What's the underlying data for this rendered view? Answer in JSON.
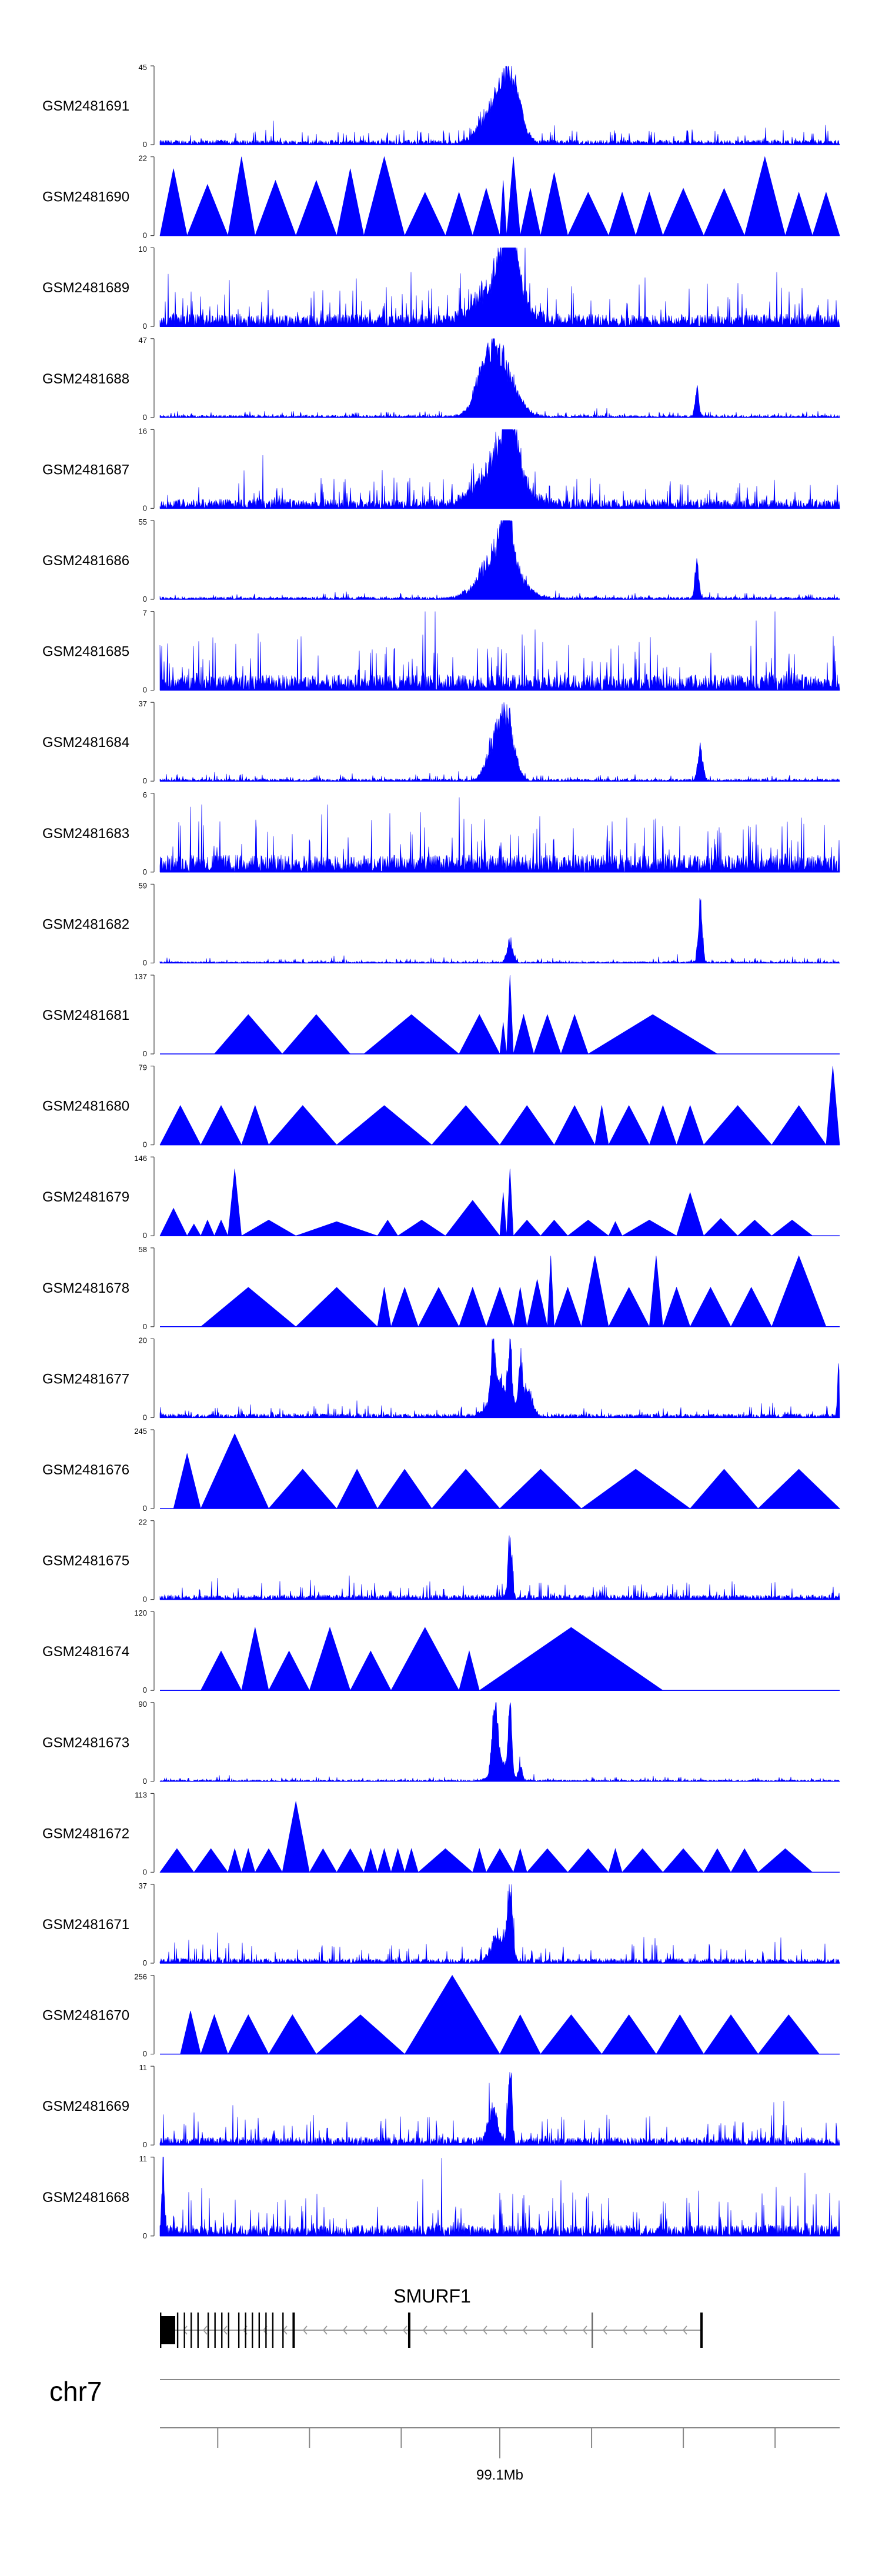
{
  "chart_data": {
    "type": "area",
    "title": "",
    "track_color": "#0000ff",
    "baseline_value": "0",
    "tracks": [
      {
        "name": "GSM2481691",
        "ymax": "45",
        "pattern": "noise",
        "density": 1.0,
        "base": 0.06,
        "spread": 0.16,
        "peaks": [
          [
            0.515,
            1.0,
            0.02
          ],
          [
            0.49,
            0.5,
            0.025
          ]
        ]
      },
      {
        "name": "GSM2481690",
        "ymax": "22",
        "pattern": "tri",
        "tris": [
          [
            0,
            0.04,
            0.85
          ],
          [
            0.04,
            0.1,
            0.65
          ],
          [
            0.1,
            0.14,
            1.0
          ],
          [
            0.14,
            0.2,
            0.7
          ],
          [
            0.2,
            0.26,
            0.7
          ],
          [
            0.26,
            0.3,
            0.85
          ],
          [
            0.3,
            0.36,
            1.0
          ],
          [
            0.36,
            0.42,
            0.55
          ],
          [
            0.42,
            0.46,
            0.55
          ],
          [
            0.46,
            0.5,
            0.6
          ],
          [
            0.5,
            0.51,
            0.7
          ],
          [
            0.51,
            0.53,
            1.0
          ],
          [
            0.53,
            0.56,
            0.6
          ],
          [
            0.56,
            0.6,
            0.8
          ],
          [
            0.6,
            0.66,
            0.55
          ],
          [
            0.66,
            0.7,
            0.55
          ],
          [
            0.7,
            0.74,
            0.55
          ],
          [
            0.74,
            0.8,
            0.6
          ],
          [
            0.8,
            0.86,
            0.6
          ],
          [
            0.86,
            0.92,
            1.0
          ],
          [
            0.92,
            0.96,
            0.55
          ],
          [
            0.96,
            1.0,
            0.55
          ]
        ]
      },
      {
        "name": "GSM2481689",
        "ymax": "10",
        "pattern": "noise",
        "density": 1.0,
        "base": 0.16,
        "spread": 0.4,
        "peaks": [
          [
            0.5,
            0.7,
            0.04
          ],
          [
            0.515,
            1.0,
            0.015
          ]
        ]
      },
      {
        "name": "GSM2481688",
        "ymax": "47",
        "pattern": "noise",
        "density": 1.0,
        "base": 0.03,
        "spread": 0.06,
        "peaks": [
          [
            0.5,
            0.85,
            0.03
          ],
          [
            0.48,
            0.5,
            0.02
          ],
          [
            0.79,
            0.42,
            0.004
          ]
        ]
      },
      {
        "name": "GSM2481687",
        "ymax": "16",
        "pattern": "noise",
        "density": 1.0,
        "base": 0.12,
        "spread": 0.3,
        "peaks": [
          [
            0.5,
            0.7,
            0.04
          ],
          [
            0.515,
            1.0,
            0.015
          ]
        ]
      },
      {
        "name": "GSM2481686",
        "ymax": "55",
        "pattern": "noise",
        "density": 1.0,
        "base": 0.03,
        "spread": 0.06,
        "peaks": [
          [
            0.5,
            0.8,
            0.035
          ],
          [
            0.51,
            1.0,
            0.01
          ],
          [
            0.79,
            0.55,
            0.004
          ]
        ]
      },
      {
        "name": "GSM2481685",
        "ymax": "7",
        "pattern": "noise",
        "density": 1.0,
        "base": 0.2,
        "spread": 0.55,
        "peaks": []
      },
      {
        "name": "GSM2481684",
        "ymax": "37",
        "pattern": "noise",
        "density": 1.0,
        "base": 0.03,
        "spread": 0.07,
        "peaks": [
          [
            0.51,
            1.0,
            0.015
          ],
          [
            0.49,
            0.5,
            0.015
          ],
          [
            0.795,
            0.5,
            0.005
          ]
        ]
      },
      {
        "name": "GSM2481683",
        "ymax": "6",
        "pattern": "noise",
        "density": 1.0,
        "base": 0.22,
        "spread": 0.55,
        "peaks": []
      },
      {
        "name": "GSM2481682",
        "ymax": "59",
        "pattern": "noise",
        "density": 1.0,
        "base": 0.02,
        "spread": 0.05,
        "peaks": [
          [
            0.515,
            0.35,
            0.006
          ],
          [
            0.795,
            1.0,
            0.004
          ]
        ]
      },
      {
        "name": "GSM2481681",
        "ymax": "137",
        "pattern": "tri",
        "tris": [
          [
            0.08,
            0.18,
            0.5
          ],
          [
            0.18,
            0.28,
            0.5
          ],
          [
            0.3,
            0.44,
            0.5
          ],
          [
            0.44,
            0.5,
            0.5
          ],
          [
            0.5,
            0.51,
            0.4
          ],
          [
            0.51,
            0.52,
            1.0
          ],
          [
            0.52,
            0.55,
            0.5
          ],
          [
            0.55,
            0.59,
            0.5
          ],
          [
            0.59,
            0.63,
            0.5
          ],
          [
            0.63,
            0.82,
            0.5
          ]
        ]
      },
      {
        "name": "GSM2481680",
        "ymax": "79",
        "pattern": "tri",
        "tris": [
          [
            0,
            0.06,
            0.5
          ],
          [
            0.06,
            0.12,
            0.5
          ],
          [
            0.12,
            0.16,
            0.5
          ],
          [
            0.16,
            0.26,
            0.5
          ],
          [
            0.26,
            0.4,
            0.5
          ],
          [
            0.4,
            0.5,
            0.5
          ],
          [
            0.5,
            0.58,
            0.5
          ],
          [
            0.58,
            0.64,
            0.5
          ],
          [
            0.64,
            0.66,
            0.5
          ],
          [
            0.66,
            0.72,
            0.5
          ],
          [
            0.72,
            0.76,
            0.5
          ],
          [
            0.76,
            0.8,
            0.5
          ],
          [
            0.8,
            0.9,
            0.5
          ],
          [
            0.9,
            0.98,
            0.5
          ],
          [
            0.98,
            1.0,
            1.0
          ]
        ]
      },
      {
        "name": "GSM2481679",
        "ymax": "146",
        "pattern": "tri",
        "tris": [
          [
            0,
            0.04,
            0.35
          ],
          [
            0.04,
            0.06,
            0.15
          ],
          [
            0.06,
            0.08,
            0.2
          ],
          [
            0.08,
            0.1,
            0.2
          ],
          [
            0.1,
            0.12,
            0.85
          ],
          [
            0.12,
            0.2,
            0.2
          ],
          [
            0.2,
            0.32,
            0.18
          ],
          [
            0.32,
            0.35,
            0.2
          ],
          [
            0.35,
            0.42,
            0.2
          ],
          [
            0.42,
            0.5,
            0.45
          ],
          [
            0.5,
            0.51,
            0.55
          ],
          [
            0.51,
            0.52,
            0.85
          ],
          [
            0.52,
            0.56,
            0.2
          ],
          [
            0.56,
            0.6,
            0.2
          ],
          [
            0.6,
            0.66,
            0.2
          ],
          [
            0.66,
            0.68,
            0.18
          ],
          [
            0.68,
            0.76,
            0.2
          ],
          [
            0.76,
            0.8,
            0.55
          ],
          [
            0.8,
            0.85,
            0.22
          ],
          [
            0.85,
            0.9,
            0.2
          ],
          [
            0.9,
            0.96,
            0.2
          ]
        ]
      },
      {
        "name": "GSM2481678",
        "ymax": "58",
        "pattern": "tri",
        "tris": [
          [
            0.06,
            0.2,
            0.5
          ],
          [
            0.2,
            0.32,
            0.5
          ],
          [
            0.32,
            0.34,
            0.5
          ],
          [
            0.34,
            0.38,
            0.5
          ],
          [
            0.38,
            0.44,
            0.5
          ],
          [
            0.44,
            0.48,
            0.5
          ],
          [
            0.48,
            0.52,
            0.5
          ],
          [
            0.52,
            0.54,
            0.5
          ],
          [
            0.54,
            0.57,
            0.6
          ],
          [
            0.57,
            0.58,
            0.9
          ],
          [
            0.58,
            0.62,
            0.5
          ],
          [
            0.62,
            0.66,
            0.9
          ],
          [
            0.66,
            0.72,
            0.5
          ],
          [
            0.72,
            0.74,
            0.9
          ],
          [
            0.74,
            0.78,
            0.5
          ],
          [
            0.78,
            0.84,
            0.5
          ],
          [
            0.84,
            0.9,
            0.5
          ],
          [
            0.9,
            0.98,
            0.9
          ]
        ]
      },
      {
        "name": "GSM2481677",
        "ymax": "20",
        "pattern": "noise",
        "density": 1.0,
        "base": 0.05,
        "spread": 0.12,
        "peaks": [
          [
            0.49,
            0.9,
            0.004
          ],
          [
            0.515,
            0.85,
            0.004
          ],
          [
            0.5,
            0.5,
            0.02
          ],
          [
            0.53,
            0.7,
            0.004
          ],
          [
            0.54,
            0.45,
            0.01
          ],
          [
            0.998,
            0.85,
            0.002
          ]
        ]
      },
      {
        "name": "GSM2481676",
        "ymax": "245",
        "pattern": "tri",
        "tris": [
          [
            0.02,
            0.06,
            0.7
          ],
          [
            0.06,
            0.16,
            0.95
          ],
          [
            0.16,
            0.26,
            0.5
          ],
          [
            0.26,
            0.32,
            0.5
          ],
          [
            0.32,
            0.4,
            0.5
          ],
          [
            0.4,
            0.5,
            0.5
          ],
          [
            0.5,
            0.62,
            0.5
          ],
          [
            0.62,
            0.78,
            0.5
          ],
          [
            0.78,
            0.88,
            0.5
          ],
          [
            0.88,
            1.0,
            0.5
          ]
        ]
      },
      {
        "name": "GSM2481675",
        "ymax": "22",
        "pattern": "noise",
        "density": 1.0,
        "base": 0.06,
        "spread": 0.18,
        "peaks": [
          [
            0.515,
            0.95,
            0.004
          ]
        ]
      },
      {
        "name": "GSM2481674",
        "ymax": "120",
        "pattern": "tri",
        "tris": [
          [
            0.06,
            0.12,
            0.5
          ],
          [
            0.12,
            0.16,
            0.8
          ],
          [
            0.16,
            0.22,
            0.5
          ],
          [
            0.22,
            0.28,
            0.8
          ],
          [
            0.28,
            0.34,
            0.5
          ],
          [
            0.34,
            0.44,
            0.8
          ],
          [
            0.44,
            0.47,
            0.5
          ],
          [
            0.47,
            0.74,
            0.8
          ]
        ]
      },
      {
        "name": "GSM2481673",
        "ymax": "90",
        "pattern": "noise",
        "density": 1.0,
        "base": 0.02,
        "spread": 0.04,
        "peaks": [
          [
            0.49,
            0.6,
            0.004
          ],
          [
            0.495,
            0.85,
            0.004
          ],
          [
            0.515,
            1.0,
            0.004
          ],
          [
            0.5,
            0.3,
            0.015
          ],
          [
            0.53,
            0.25,
            0.004
          ]
        ]
      },
      {
        "name": "GSM2481672",
        "ymax": "113",
        "pattern": "tri",
        "tris": [
          [
            0,
            0.05,
            0.3
          ],
          [
            0.05,
            0.1,
            0.3
          ],
          [
            0.1,
            0.12,
            0.3
          ],
          [
            0.12,
            0.14,
            0.3
          ],
          [
            0.14,
            0.18,
            0.3
          ],
          [
            0.18,
            0.22,
            0.9
          ],
          [
            0.22,
            0.26,
            0.3
          ],
          [
            0.26,
            0.3,
            0.3
          ],
          [
            0.3,
            0.32,
            0.3
          ],
          [
            0.32,
            0.34,
            0.3
          ],
          [
            0.34,
            0.36,
            0.3
          ],
          [
            0.36,
            0.38,
            0.3
          ],
          [
            0.38,
            0.46,
            0.3
          ],
          [
            0.46,
            0.48,
            0.3
          ],
          [
            0.48,
            0.52,
            0.3
          ],
          [
            0.52,
            0.54,
            0.3
          ],
          [
            0.54,
            0.6,
            0.3
          ],
          [
            0.6,
            0.66,
            0.3
          ],
          [
            0.66,
            0.68,
            0.3
          ],
          [
            0.68,
            0.74,
            0.3
          ],
          [
            0.74,
            0.8,
            0.3
          ],
          [
            0.8,
            0.84,
            0.3
          ],
          [
            0.84,
            0.88,
            0.3
          ],
          [
            0.88,
            0.96,
            0.3
          ]
        ]
      },
      {
        "name": "GSM2481671",
        "ymax": "37",
        "pattern": "noise",
        "density": 1.0,
        "base": 0.06,
        "spread": 0.22,
        "peaks": [
          [
            0.515,
            1.0,
            0.005
          ],
          [
            0.5,
            0.45,
            0.015
          ]
        ]
      },
      {
        "name": "GSM2481670",
        "ymax": "256",
        "pattern": "tri",
        "tris": [
          [
            0.03,
            0.06,
            0.55
          ],
          [
            0.06,
            0.1,
            0.5
          ],
          [
            0.1,
            0.16,
            0.5
          ],
          [
            0.16,
            0.23,
            0.5
          ],
          [
            0.23,
            0.36,
            0.5
          ],
          [
            0.36,
            0.5,
            1.0
          ],
          [
            0.5,
            0.56,
            0.5
          ],
          [
            0.56,
            0.65,
            0.5
          ],
          [
            0.65,
            0.73,
            0.5
          ],
          [
            0.73,
            0.8,
            0.5
          ],
          [
            0.8,
            0.88,
            0.5
          ],
          [
            0.88,
            0.97,
            0.5
          ]
        ]
      },
      {
        "name": "GSM2481669",
        "ymax": "11",
        "pattern": "noise",
        "density": 1.0,
        "base": 0.1,
        "spread": 0.3,
        "peaks": [
          [
            0.49,
            0.5,
            0.01
          ],
          [
            0.515,
            1.0,
            0.004
          ]
        ]
      },
      {
        "name": "GSM2481668",
        "ymax": "11",
        "pattern": "noise",
        "density": 1.0,
        "base": 0.14,
        "spread": 0.45,
        "peaks": [
          [
            0.005,
            0.95,
            0.003
          ]
        ]
      }
    ],
    "gene": {
      "name": "SMURF1",
      "start_frac": 0.0,
      "end_frac": 0.795,
      "exons": [
        0.0,
        0.025,
        0.035,
        0.045,
        0.055,
        0.07,
        0.08,
        0.09,
        0.1,
        0.115,
        0.125,
        0.135,
        0.145,
        0.155,
        0.165,
        0.18,
        0.195,
        0.365,
        0.635,
        0.795
      ]
    },
    "chromosome": "chr7",
    "axis": {
      "tick_fracs": [
        0.085,
        0.22,
        0.355,
        0.5,
        0.635,
        0.77,
        0.905
      ],
      "label": "99.1Mb",
      "label_tick_index": 3
    }
  }
}
